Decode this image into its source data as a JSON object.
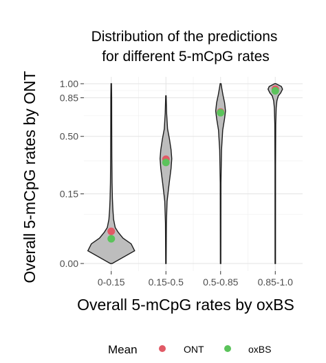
{
  "chart_data": {
    "type": "violin",
    "title_lines": [
      "Distribution of the predictions",
      "for different 5-mCpG rates"
    ],
    "xlabel": "Overall 5-mCpG rates by oxBS",
    "ylabel": "Overall 5-mCpG rates by ONT",
    "categories": [
      "0-0.15",
      "0.15-0.5",
      "0.5-0.85",
      "0.85-1.0"
    ],
    "y_scale": "sqrt",
    "ylim": [
      0,
      1.02
    ],
    "y_ticks": [
      {
        "value": 0.0,
        "label": "0.00"
      },
      {
        "value": 0.15,
        "label": "0.15"
      },
      {
        "value": 0.5,
        "label": "0.50"
      },
      {
        "value": 0.85,
        "label": "0.85"
      },
      {
        "value": 1.0,
        "label": "1.00"
      }
    ],
    "legend": {
      "title": "Mean",
      "position": "bottom",
      "entries": [
        {
          "label": "ONT",
          "color": "#e15a66"
        },
        {
          "label": "oxBS",
          "color": "#5bc35b"
        }
      ]
    },
    "series": [
      {
        "name": "ONT",
        "values": [
          0.03,
          0.33,
          0.7,
          0.93
        ]
      },
      {
        "name": "oxBS",
        "values": [
          0.02,
          0.32,
          0.71,
          0.93
        ]
      }
    ],
    "violins": [
      {
        "category": "0-0.15",
        "y_range": [
          0.0,
          1.0
        ],
        "density": [
          [
            0.0,
            0.04
          ],
          [
            0.005,
            1.0
          ],
          [
            0.012,
            0.85
          ],
          [
            0.02,
            0.5
          ],
          [
            0.03,
            0.3
          ],
          [
            0.04,
            0.17
          ],
          [
            0.06,
            0.1
          ],
          [
            0.09,
            0.07
          ],
          [
            0.13,
            0.05
          ],
          [
            0.2,
            0.035
          ],
          [
            0.35,
            0.025
          ],
          [
            0.6,
            0.02
          ],
          [
            0.85,
            0.018
          ],
          [
            1.0,
            0.01
          ]
        ]
      },
      {
        "category": "0.15-0.5",
        "y_range": [
          0.0,
          0.87
        ],
        "density": [
          [
            0.0,
            0.01
          ],
          [
            0.05,
            0.02
          ],
          [
            0.12,
            0.05
          ],
          [
            0.2,
            0.14
          ],
          [
            0.28,
            0.22
          ],
          [
            0.34,
            0.25
          ],
          [
            0.4,
            0.22
          ],
          [
            0.48,
            0.15
          ],
          [
            0.56,
            0.07
          ],
          [
            0.7,
            0.03
          ],
          [
            0.87,
            0.01
          ]
        ]
      },
      {
        "category": "0.5-0.85",
        "y_range": [
          0.0,
          1.0
        ],
        "density": [
          [
            0.0,
            0.01
          ],
          [
            0.2,
            0.015
          ],
          [
            0.4,
            0.04
          ],
          [
            0.55,
            0.09
          ],
          [
            0.65,
            0.17
          ],
          [
            0.72,
            0.21
          ],
          [
            0.8,
            0.17
          ],
          [
            0.88,
            0.1
          ],
          [
            0.95,
            0.05
          ],
          [
            1.0,
            0.02
          ]
        ]
      },
      {
        "category": "0.85-1.0",
        "y_range": [
          0.0,
          1.0
        ],
        "density": [
          [
            0.0,
            0.01
          ],
          [
            0.3,
            0.012
          ],
          [
            0.6,
            0.02
          ],
          [
            0.75,
            0.04
          ],
          [
            0.82,
            0.07
          ],
          [
            0.87,
            0.13
          ],
          [
            0.9,
            0.23
          ],
          [
            0.94,
            0.31
          ],
          [
            0.97,
            0.26
          ],
          [
            0.99,
            0.1
          ],
          [
            1.0,
            0.03
          ]
        ]
      }
    ]
  }
}
